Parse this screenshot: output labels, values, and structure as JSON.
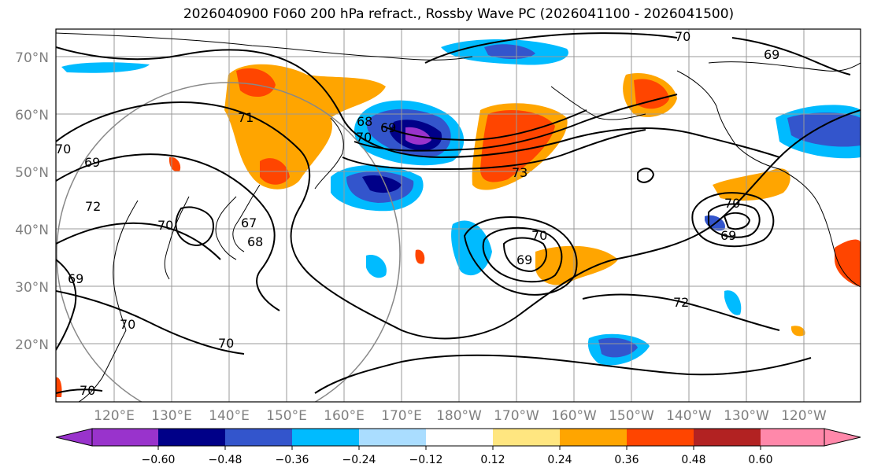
{
  "title": "2026040900 F060 200 hPa refract., Rossby Wave PC (2026041100 - 2026041500)",
  "lat_labels": [
    "70°N",
    "60°N",
    "50°N",
    "40°N",
    "30°N",
    "20°N"
  ],
  "lon_labels": [
    "120°E",
    "130°E",
    "140°E",
    "150°E",
    "160°E",
    "170°E",
    "180°W",
    "170°W",
    "160°W",
    "150°W",
    "140°W",
    "130°W",
    "120°W"
  ],
  "contour_labels": [
    "70",
    "69",
    "69",
    "69",
    "71",
    "68",
    "67",
    "68",
    "70",
    "70",
    "72",
    "69",
    "70",
    "73",
    "70",
    "69",
    "70",
    "69",
    "72",
    "70",
    "70",
    "70"
  ],
  "colorbar": {
    "colors": [
      "#9933cc",
      "#000088",
      "#3355cc",
      "#00bbff",
      "#aaddff",
      "#ffffff",
      "#ffe680",
      "#ffa500",
      "#ff4500",
      "#b22222",
      "#ff88aa"
    ],
    "tick_labels": [
      "−0.60",
      "−0.48",
      "−0.36",
      "−0.24",
      "−0.12",
      "0.12",
      "0.24",
      "0.36",
      "0.48",
      "0.60"
    ]
  }
}
